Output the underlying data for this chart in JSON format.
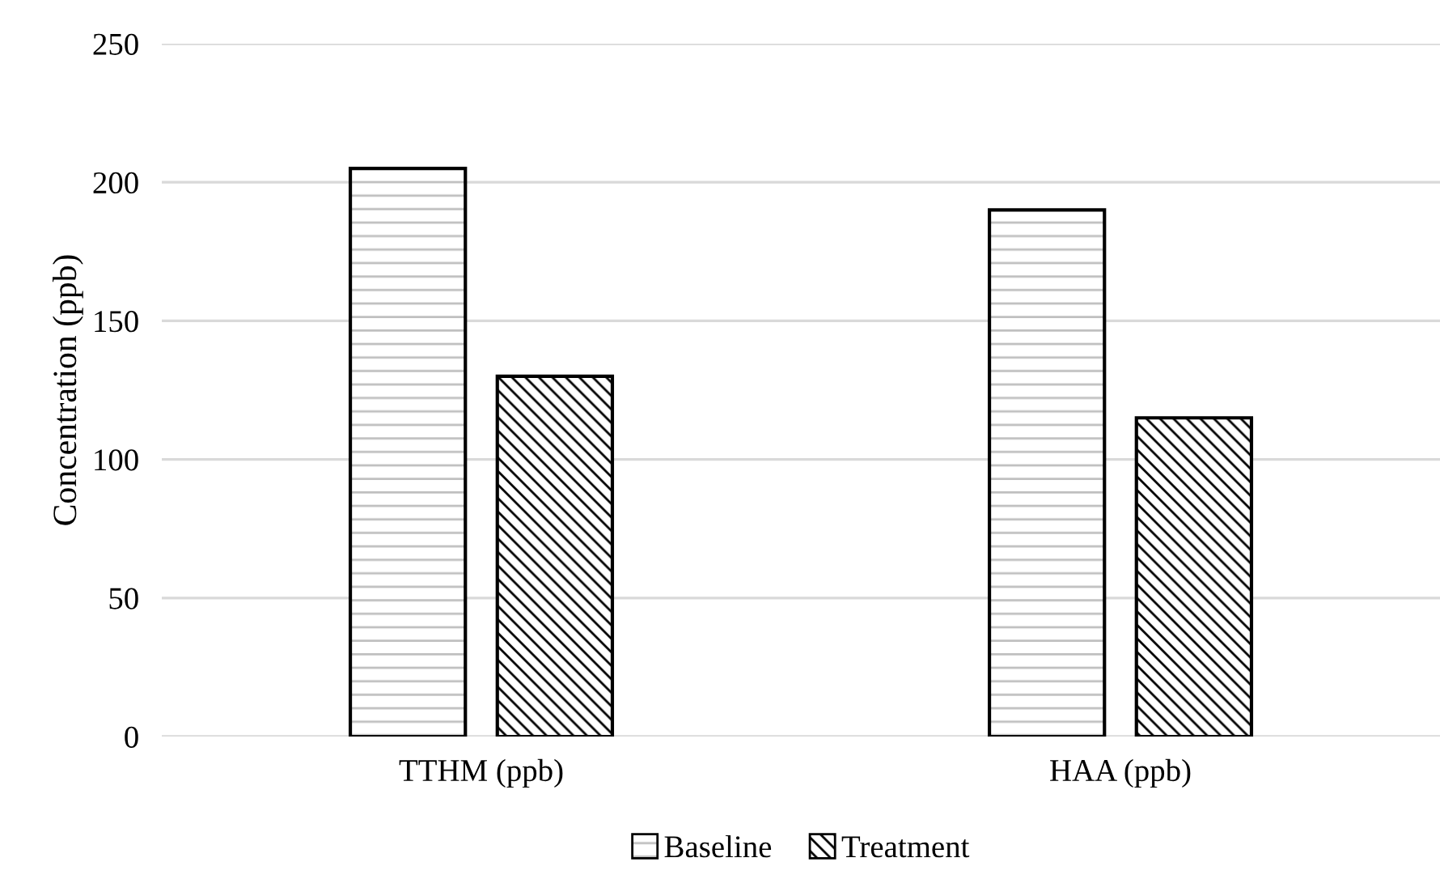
{
  "chart_data": {
    "type": "bar",
    "ylabel": "Concentration (ppb)",
    "categories": [
      "TTHM (ppb)",
      "HAA (ppb)"
    ],
    "series": [
      {
        "name": "Baseline",
        "color": "#000000",
        "values": [
          205,
          190
        ]
      },
      {
        "name": "Treatment",
        "color": "#000000",
        "values": [
          130,
          115
        ]
      }
    ],
    "ylim": [
      0,
      250
    ],
    "yticks": [
      0,
      50,
      100,
      150,
      200,
      250
    ],
    "grid": "y",
    "legend": "bottom"
  }
}
